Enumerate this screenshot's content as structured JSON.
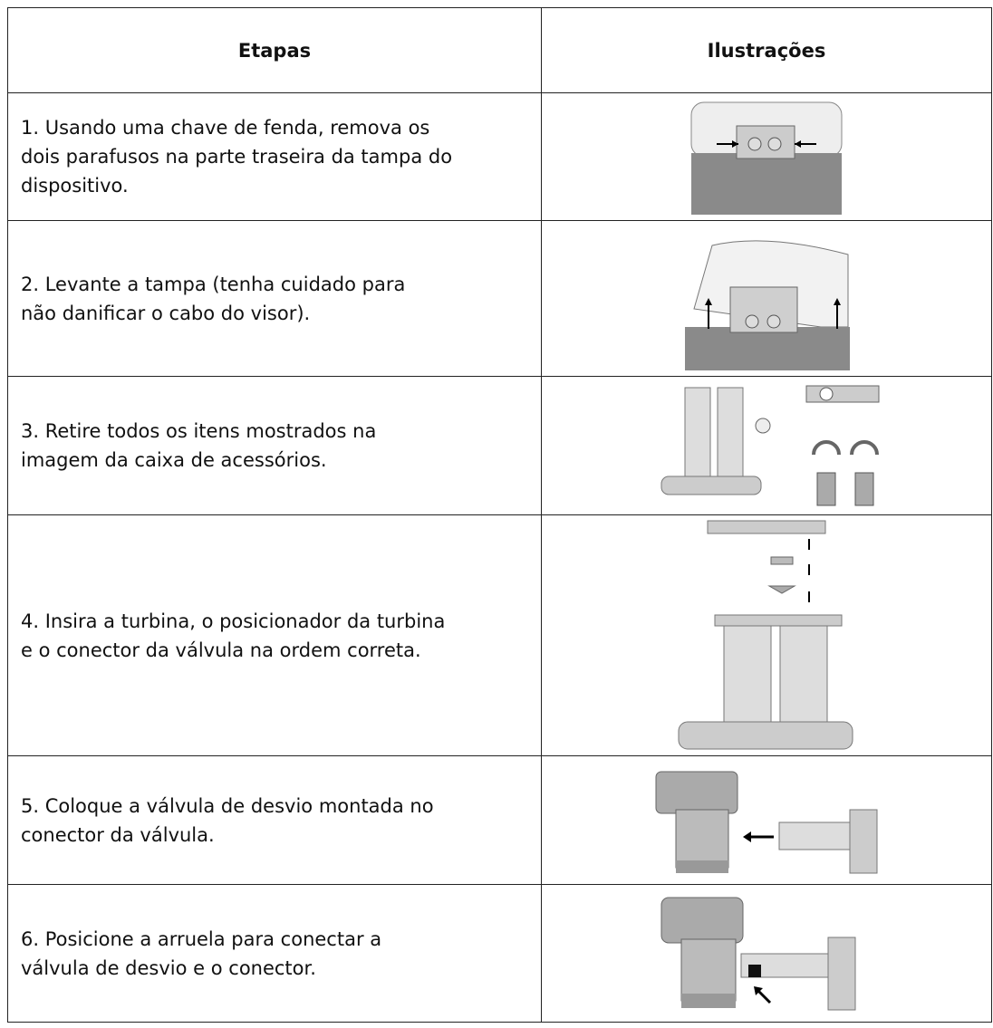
{
  "table": {
    "header": [
      "Etapas",
      "Ilustrações"
    ],
    "rows": [
      {
        "lines": [
          "1. Usando uma chave de fenda, remova os",
          "dois parafusos na parte traseira da tampa do",
          "dispositivo."
        ]
      },
      {
        "lines": [
          "2. Levante a tampa (tenha cuidado para",
          "não danificar o cabo do visor)."
        ]
      },
      {
        "lines": [
          "3. Retire todos os itens mostrados na",
          "imagem da caixa de acessórios."
        ]
      },
      {
        "lines": [
          "4. Insira a turbina, o posicionador da turbina",
          "e o conector da válvula na ordem correta."
        ]
      },
      {
        "lines": [
          "5. Coloque a válvula de desvio montada no",
          "conector da válvula."
        ]
      },
      {
        "lines": [
          "6. Posicione a arruela para conectar a",
          "válvula de desvio e o conector."
        ]
      }
    ]
  }
}
